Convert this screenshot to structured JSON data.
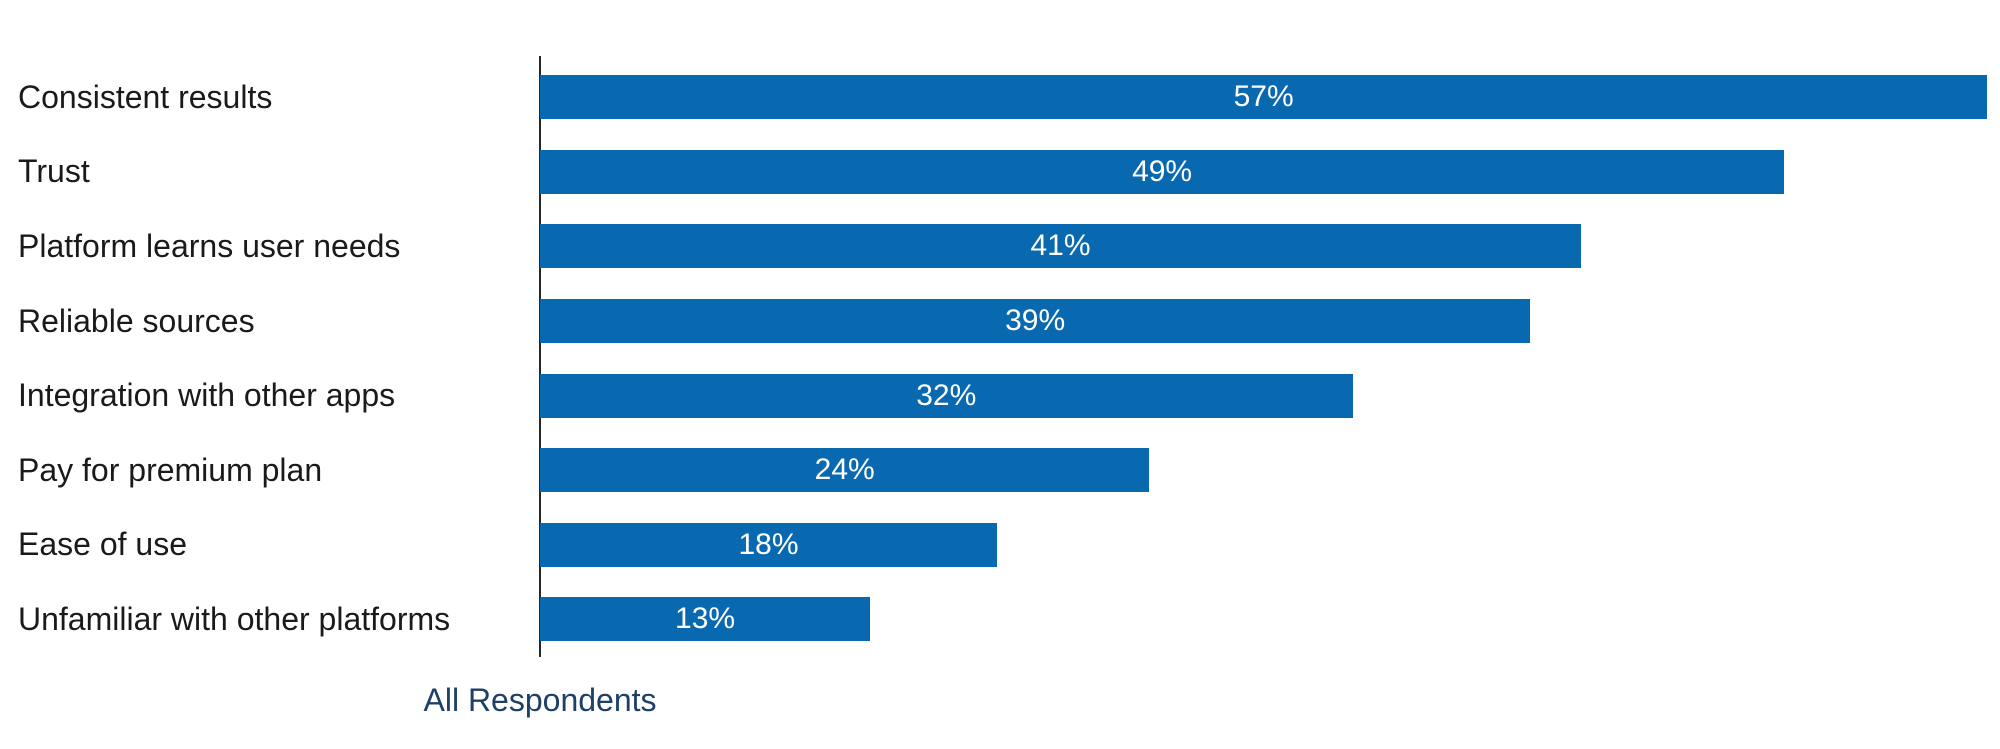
{
  "chart_data": {
    "type": "bar",
    "orientation": "horizontal",
    "title": "",
    "categories": [
      "Consistent results",
      "Trust",
      "Platform learns user needs",
      "Reliable sources",
      "Integration with other apps",
      "Pay for premium plan",
      "Ease of use",
      "Unfamiliar with other platforms"
    ],
    "values": [
      57,
      49,
      41,
      39,
      32,
      24,
      18,
      13
    ],
    "display_values": [
      "57%",
      "49%",
      "41%",
      "39%",
      "32%",
      "24%",
      "18%",
      "13%"
    ],
    "xlabel": "All Respondents",
    "ylabel": "",
    "xlim": [
      0,
      57.5
    ],
    "grid": false,
    "legend": false,
    "value_labels_position": "inside-center",
    "colors": {
      "bar": "#0869b1",
      "value_label": "#ffffff",
      "category_label": "#1a1a1a",
      "axis_line": "#262626",
      "xlabel": "#1e3f66",
      "background": "#ffffff"
    }
  }
}
